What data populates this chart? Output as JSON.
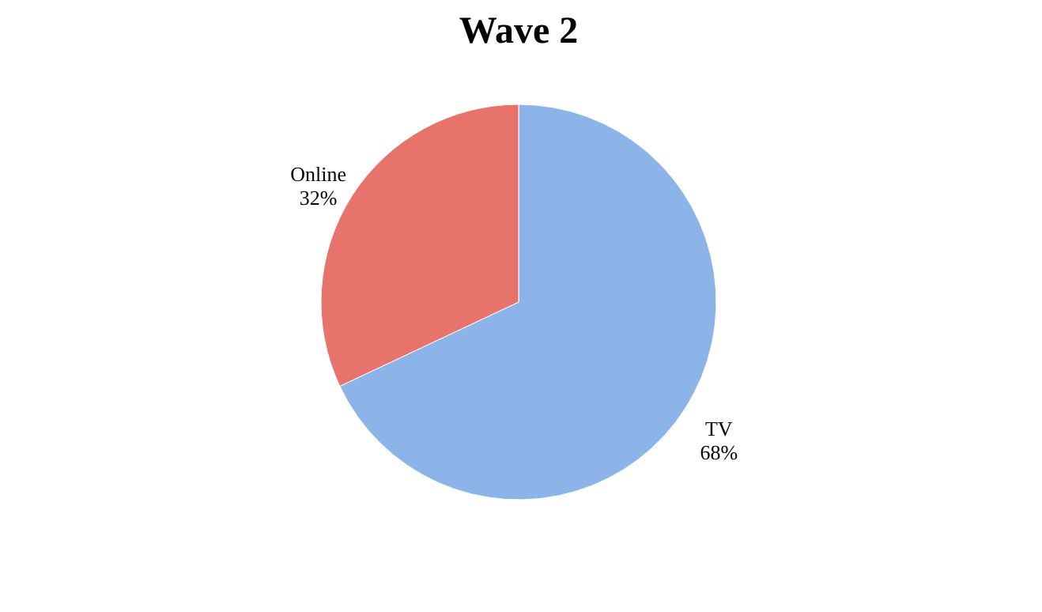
{
  "chart_data": {
    "type": "pie",
    "title": "Wave 2",
    "categories": [
      "TV",
      "Online"
    ],
    "values": [
      68,
      32
    ],
    "value_labels": [
      "68%",
      "32%"
    ],
    "colors": [
      "#8db4e8",
      "#e8736c"
    ],
    "legend": false
  }
}
